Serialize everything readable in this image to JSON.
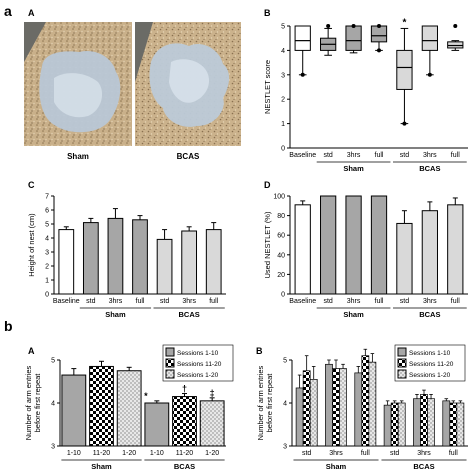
{
  "figure_labels": {
    "part_a": "a",
    "part_b": "b"
  },
  "panels_a": {
    "A": {
      "letter": "A",
      "photo_labels": [
        "Sham",
        "BCAS"
      ]
    },
    "B": {
      "letter": "B"
    },
    "C": {
      "letter": "C"
    },
    "D": {
      "letter": "D"
    }
  },
  "panels_b": {
    "A": {
      "letter": "A"
    },
    "B": {
      "letter": "B"
    }
  },
  "colors": {
    "white": "#ffffff",
    "dark_gray": "#a6a6a6",
    "light_gray": "#d9d9d9",
    "black": "#000000"
  },
  "chart_data": [
    {
      "id": "aB",
      "type": "box",
      "ylabel": "NESTLET score",
      "ylim": [
        0,
        5
      ],
      "yticks": [
        0,
        1,
        2,
        3,
        4,
        5
      ],
      "categories": [
        "Baseline",
        "std",
        "3hrs",
        "full",
        "std",
        "3hrs",
        "full"
      ],
      "groups": [
        {
          "label": "Sham",
          "from": 1,
          "to": 3
        },
        {
          "label": "BCAS",
          "from": 4,
          "to": 6
        }
      ],
      "boxes": [
        {
          "min": 3.0,
          "q1": 4.0,
          "median": 4.4,
          "q3": 5.0,
          "max": 5.0,
          "fill": "#ffffff"
        },
        {
          "min": 3.8,
          "q1": 4.0,
          "median": 4.25,
          "q3": 4.5,
          "max": 4.9,
          "fill": "#a6a6a6"
        },
        {
          "min": 3.9,
          "q1": 4.0,
          "median": 4.4,
          "q3": 5.0,
          "max": 5.0,
          "fill": "#a6a6a6"
        },
        {
          "min": 4.0,
          "q1": 4.35,
          "median": 4.6,
          "q3": 5.0,
          "max": 5.0,
          "fill": "#a6a6a6"
        },
        {
          "min": 1.0,
          "q1": 2.4,
          "median": 3.3,
          "q3": 4.0,
          "max": 4.9,
          "fill": "#d9d9d9"
        },
        {
          "min": 3.0,
          "q1": 4.0,
          "median": 4.4,
          "q3": 5.0,
          "max": 5.0,
          "fill": "#d9d9d9"
        },
        {
          "min": 4.0,
          "q1": 4.1,
          "median": 4.2,
          "q3": 4.35,
          "max": 4.4,
          "fill": "#d9d9d9"
        }
      ],
      "outliers": [
        {
          "index": 0,
          "value": 3.0
        },
        {
          "index": 1,
          "value": 5.0
        },
        {
          "index": 2,
          "value": 5.0
        },
        {
          "index": 3,
          "value": 4.0
        },
        {
          "index": 3,
          "value": 5.0
        },
        {
          "index": 4,
          "value": 1.0
        },
        {
          "index": 5,
          "value": 3.0
        },
        {
          "index": 6,
          "value": 5.0
        }
      ],
      "annotations": [
        {
          "index": 4,
          "text": "*"
        }
      ]
    },
    {
      "id": "aC",
      "type": "bar",
      "ylabel": "Height of nest (cm)",
      "ylim": [
        0,
        7
      ],
      "yticks": [
        0,
        1,
        2,
        3,
        4,
        5,
        6,
        7
      ],
      "categories": [
        "Baseline",
        "std",
        "3hrs",
        "full",
        "std",
        "3hrs",
        "full"
      ],
      "groups": [
        {
          "label": "Sham",
          "from": 1,
          "to": 3
        },
        {
          "label": "BCAS",
          "from": 4,
          "to": 6
        }
      ],
      "values": [
        4.6,
        5.1,
        5.4,
        5.3,
        3.9,
        4.5,
        4.6
      ],
      "errors": [
        0.2,
        0.3,
        0.7,
        0.3,
        0.7,
        0.3,
        0.5
      ],
      "fills": [
        "#ffffff",
        "#a6a6a6",
        "#a6a6a6",
        "#a6a6a6",
        "#d9d9d9",
        "#d9d9d9",
        "#d9d9d9"
      ]
    },
    {
      "id": "aD",
      "type": "bar",
      "ylabel": "Used NESTLET (%)",
      "ylim": [
        0,
        100
      ],
      "yticks": [
        0,
        20,
        40,
        60,
        80,
        100
      ],
      "categories": [
        "Baseline",
        "std",
        "3hrs",
        "full",
        "std",
        "3hrs",
        "full"
      ],
      "groups": [
        {
          "label": "Sham",
          "from": 1,
          "to": 3
        },
        {
          "label": "BCAS",
          "from": 4,
          "to": 6
        }
      ],
      "values": [
        91,
        100,
        100,
        100,
        72,
        85,
        91
      ],
      "errors": [
        4,
        0,
        0,
        0,
        13,
        9,
        7
      ],
      "fills": [
        "#ffffff",
        "#a6a6a6",
        "#a6a6a6",
        "#a6a6a6",
        "#d9d9d9",
        "#d9d9d9",
        "#d9d9d9"
      ]
    },
    {
      "id": "bA",
      "type": "grouped_bar",
      "ylabel": "Number of arm entries before first repeat",
      "ylim": [
        3,
        5
      ],
      "yticks": [
        3,
        4,
        5
      ],
      "categories": [
        "1-10",
        "11-20",
        "1-20",
        "1-10",
        "11-20",
        "1-20"
      ],
      "groups": [
        {
          "label": "Sham",
          "from": 0,
          "to": 2
        },
        {
          "label": "BCAS",
          "from": 3,
          "to": 5
        }
      ],
      "values": [
        4.65,
        4.85,
        4.75,
        4.0,
        4.15,
        4.05
      ],
      "errors": [
        0.15,
        0.12,
        0.08,
        0.05,
        0.07,
        0.07
      ],
      "patterns": [
        "gray",
        "check",
        "dots",
        "gray",
        "check",
        "dots"
      ],
      "legend": [
        "Sessions 1-10",
        "Sessions 11-20",
        "Sessions 1-20"
      ],
      "legend_position": "top-right",
      "annotations": [
        {
          "index": 3,
          "text": "*"
        },
        {
          "index": 4,
          "text": "†"
        },
        {
          "index": 5,
          "text": "‡"
        }
      ]
    },
    {
      "id": "bB",
      "type": "grouped_bar",
      "ylabel": "Number of arm entries before first repeat",
      "ylim": [
        3,
        5
      ],
      "yticks": [
        3,
        4,
        5
      ],
      "categories": [
        "std",
        "3hrs",
        "full",
        "std",
        "3hrs",
        "full"
      ],
      "groups": [
        {
          "label": "Sham",
          "from": 0,
          "to": 2
        },
        {
          "label": "BCAS",
          "from": 3,
          "to": 5
        }
      ],
      "series_values": [
        [
          4.35,
          4.75,
          4.55
        ],
        [
          4.9,
          4.8,
          4.8
        ],
        [
          4.7,
          5.1,
          4.95
        ],
        [
          3.95,
          4.0,
          4.0
        ],
        [
          4.1,
          4.2,
          4.1
        ],
        [
          4.05,
          4.0,
          4.0
        ]
      ],
      "series_errors": [
        [
          0.3,
          0.35,
          0.3
        ],
        [
          0.1,
          0.2,
          0.1
        ],
        [
          0.15,
          0.15,
          0.2
        ],
        [
          0.1,
          0.05,
          0.05
        ],
        [
          0.1,
          0.1,
          0.1
        ],
        [
          0.05,
          0.05,
          0.05
        ]
      ],
      "legend": [
        "Sessions 1-10",
        "Sessions 11-20",
        "Sessions 1-20"
      ],
      "legend_position": "top-right"
    }
  ]
}
